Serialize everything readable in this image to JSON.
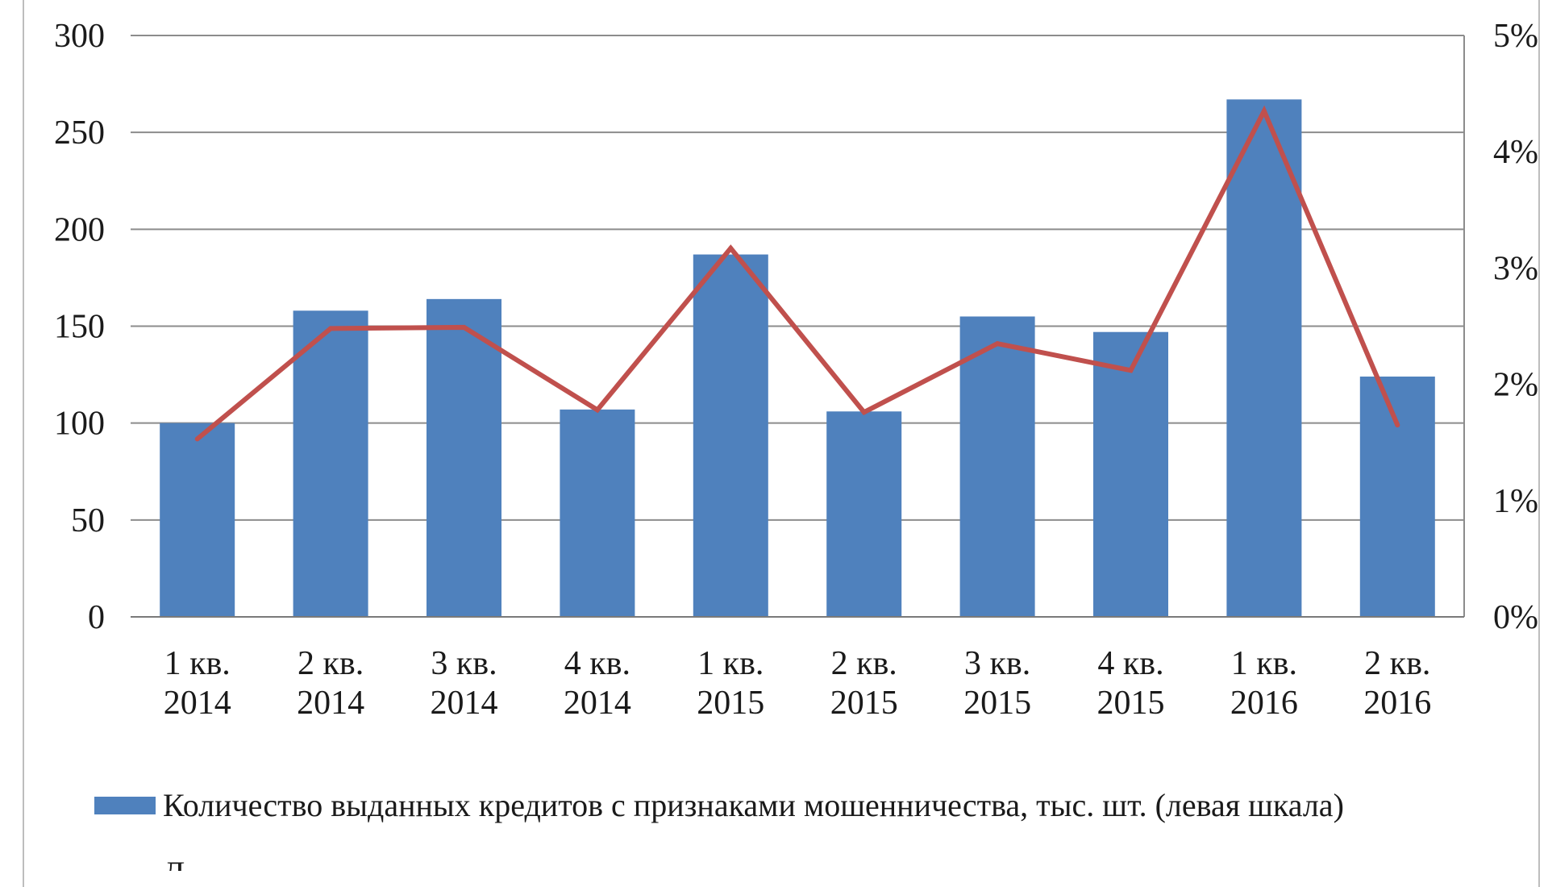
{
  "chart_data": {
    "type": "bar",
    "categories": [
      [
        "1 кв.",
        "2014"
      ],
      [
        "2 кв.",
        "2014"
      ],
      [
        "3 кв.",
        "2014"
      ],
      [
        "4 кв.",
        "2014"
      ],
      [
        "1 кв.",
        "2015"
      ],
      [
        "2 кв.",
        "2015"
      ],
      [
        "3 кв.",
        "2015"
      ],
      [
        "4 кв.",
        "2015"
      ],
      [
        "1 кв.",
        "2016"
      ],
      [
        "2 кв.",
        "2016"
      ]
    ],
    "series": [
      {
        "name": "Количество выданных кредитов с признаками мошенничества, тыс. шт. (левая шкала)",
        "type": "bar",
        "axis": "left",
        "color": "#4f81bd",
        "values": [
          100,
          158,
          164,
          107,
          187,
          106,
          155,
          147,
          267,
          124
        ]
      },
      {
        "type": "line",
        "axis": "right",
        "color": "#c0504d",
        "values": [
          1.53,
          2.48,
          2.49,
          1.78,
          3.17,
          1.76,
          2.35,
          2.12,
          4.35,
          1.65
        ]
      }
    ],
    "ylim_left": [
      0,
      300
    ],
    "yticks_left": [
      "0",
      "50",
      "100",
      "150",
      "200",
      "250",
      "300"
    ],
    "ylim_right": [
      0,
      5
    ],
    "yticks_right": [
      "0%",
      "1%",
      "2%",
      "3%",
      "4%",
      "5%"
    ],
    "grid": true,
    "legend_position": "bottom",
    "legend_partial_text": "Д"
  }
}
